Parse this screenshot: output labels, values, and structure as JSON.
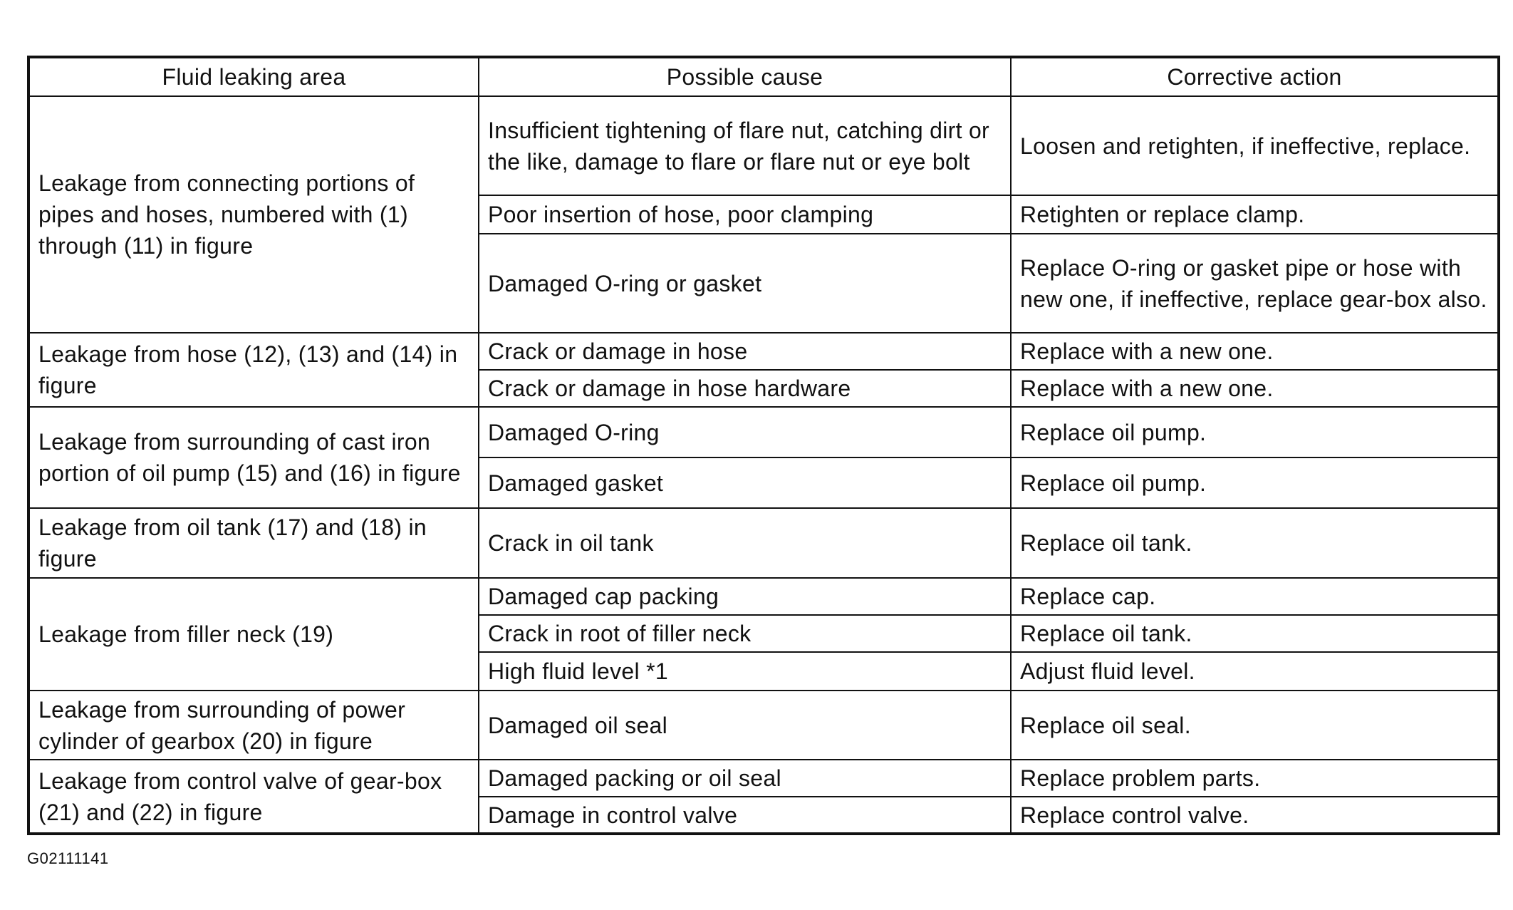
{
  "headers": [
    "Fluid leaking area",
    "Possible cause",
    "Corrective action"
  ],
  "groups": [
    {
      "area": "Leakage from connecting portions of pipes and hoses, numbered with (1) through (11) in figure",
      "rows": [
        {
          "cause": "Insufficient tightening of flare nut, catching dirt or the like, damage to flare or flare nut or eye bolt",
          "action": "Loosen and retighten, if ineffective, replace."
        },
        {
          "cause": "Poor insertion of hose, poor clamping",
          "action": "Retighten or replace clamp."
        },
        {
          "cause": "Damaged O-ring or gasket",
          "action": "Replace O-ring or gasket pipe or hose with new one, if ineffective, replace gear-box also."
        }
      ]
    },
    {
      "area": "Leakage from hose (12), (13) and (14) in figure",
      "rows": [
        {
          "cause": "Crack or damage in hose",
          "action": "Replace with a new one."
        },
        {
          "cause": "Crack or damage in hose hardware",
          "action": "Replace with a new one."
        }
      ]
    },
    {
      "area": "Leakage from surrounding of cast iron portion of oil pump (15) and (16) in figure",
      "rows": [
        {
          "cause": "Damaged O-ring",
          "action": "Replace oil pump."
        },
        {
          "cause": "Damaged gasket",
          "action": "Replace oil pump."
        }
      ]
    },
    {
      "area": "Leakage from oil tank (17) and (18) in figure",
      "rows": [
        {
          "cause": "Crack in oil tank",
          "action": "Replace oil tank."
        }
      ]
    },
    {
      "area": "Leakage from filler neck (19)",
      "rows": [
        {
          "cause": "Damaged cap packing",
          "action": "Replace cap."
        },
        {
          "cause": "Crack in root of filler neck",
          "action": "Replace oil tank."
        },
        {
          "cause": "High fluid level *1",
          "action": "Adjust fluid level."
        }
      ]
    },
    {
      "area": "Leakage from surrounding of power cylinder of gearbox (20) in figure",
      "rows": [
        {
          "cause": "Damaged oil seal",
          "action": "Replace oil seal."
        }
      ]
    },
    {
      "area": "Leakage from control valve of gear-box (21) and (22) in figure",
      "rows": [
        {
          "cause": "Damaged packing or oil seal",
          "action": "Replace problem parts."
        },
        {
          "cause": "Damage in control valve",
          "action": "Replace control valve."
        }
      ]
    }
  ],
  "figure_id": "G02111141"
}
